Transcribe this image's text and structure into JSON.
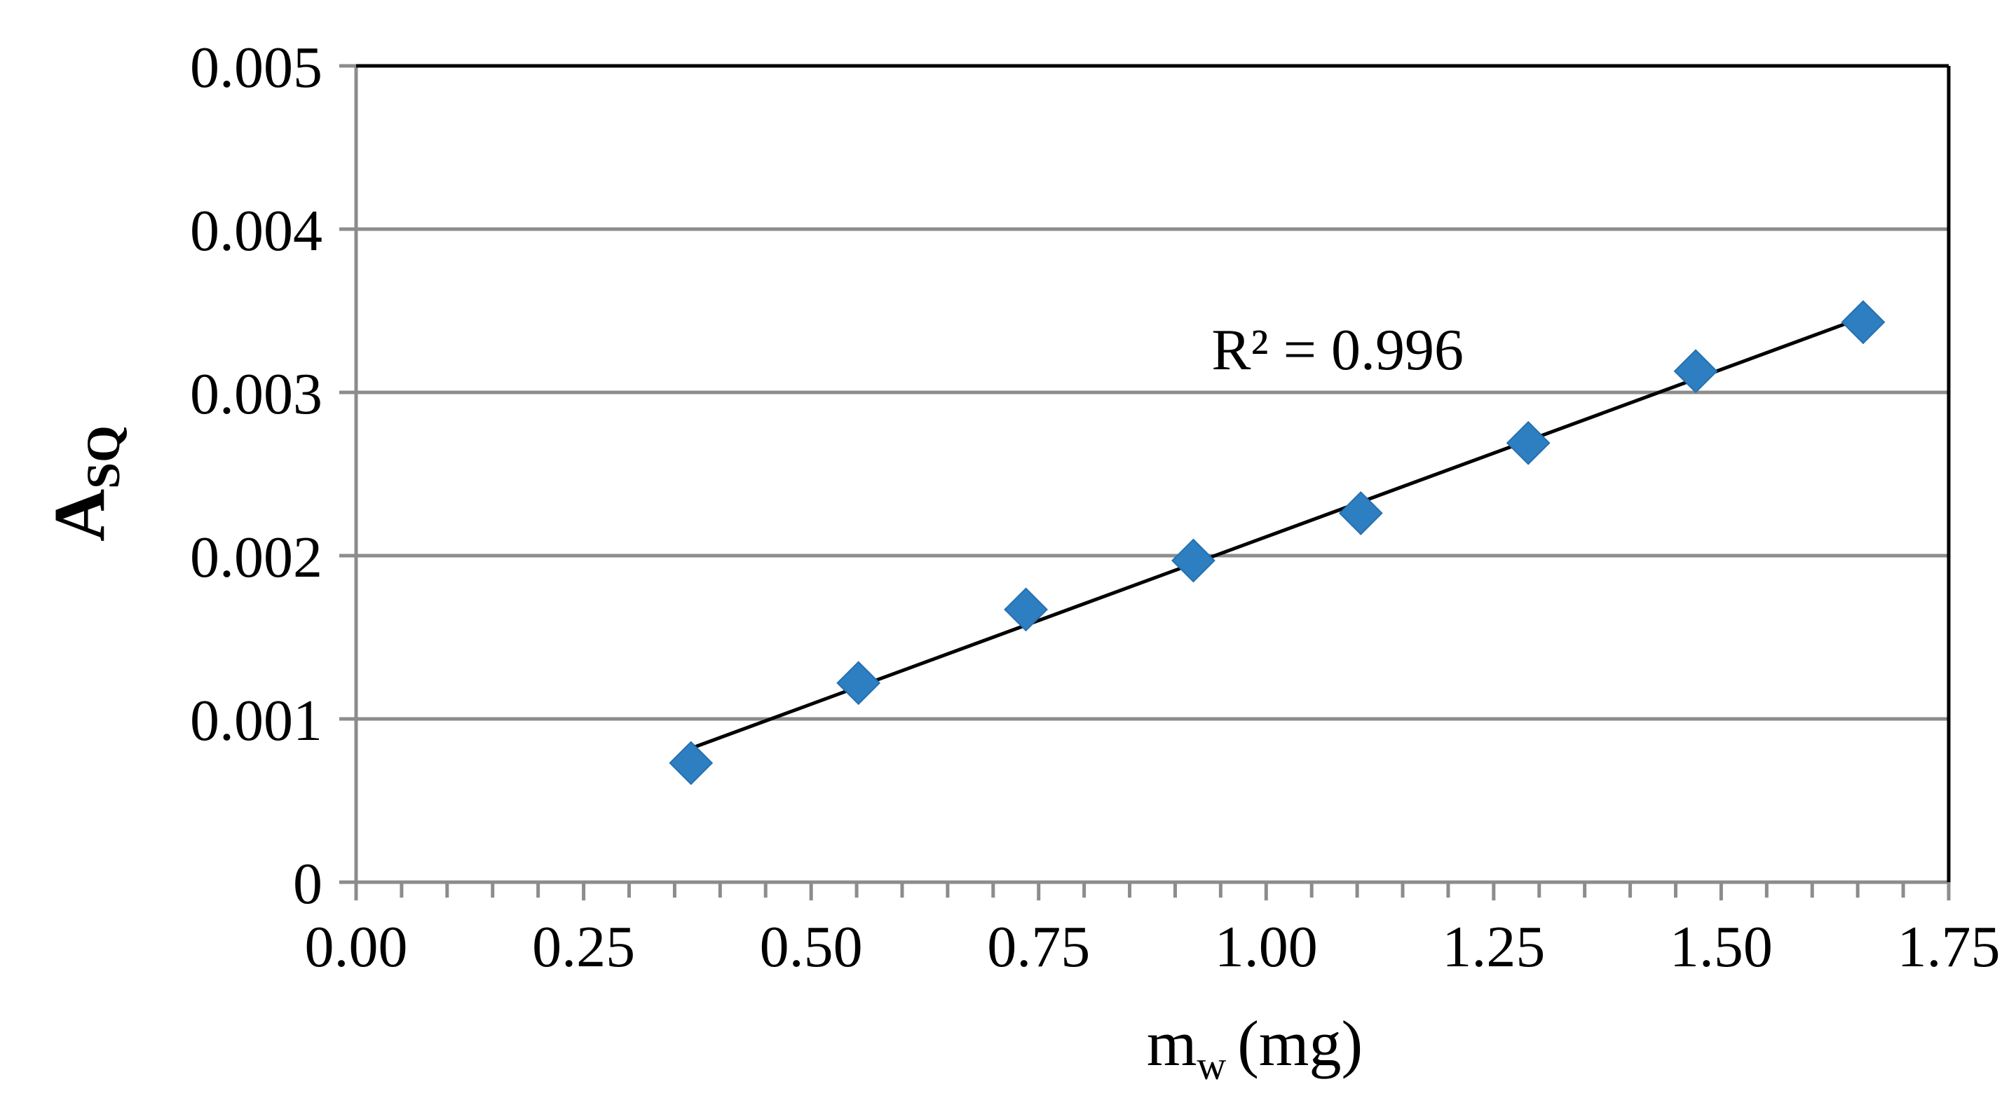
{
  "colors": {
    "marker": "#2E7FC1",
    "gridline": "#8C8C8C",
    "plot_border": "#000000",
    "trendline": "#000000",
    "background": "#FFFFFF"
  },
  "chart_data": {
    "type": "scatter",
    "title": "",
    "xlabel": "m",
    "xlabel_subscript": "w",
    "xlabel_unit": "(mg)",
    "ylabel": "A",
    "ylabel_subscript": "SQ",
    "xlim": [
      0,
      1.75
    ],
    "ylim": [
      0,
      0.005
    ],
    "x_ticks": [
      0,
      0.25,
      0.5,
      0.75,
      1.0,
      1.25,
      1.5,
      1.75
    ],
    "x_tick_labels": [
      "0.00",
      "0.25",
      "0.50",
      "0.75",
      "1.00",
      "1.25",
      "1.50",
      "1.75"
    ],
    "x_minor_step": 0.05,
    "y_ticks": [
      0,
      0.001,
      0.002,
      0.003,
      0.004,
      0.005
    ],
    "y_tick_labels": [
      "0",
      "0.001",
      "0.002",
      "0.003",
      "0.004",
      "0.005"
    ],
    "grid": true,
    "legend": "none",
    "series": [
      {
        "name": "A_SQ",
        "marker": "diamond",
        "x": [
          0.368,
          0.552,
          0.736,
          0.92,
          1.104,
          1.288,
          1.472,
          1.656
        ],
        "y": [
          0.00073,
          0.00122,
          0.00167,
          0.00197,
          0.00226,
          0.00269,
          0.00313,
          0.00343
        ]
      }
    ],
    "trendline": {
      "type": "linear",
      "x_start": 0.368,
      "y_start": 0.00082,
      "x_end": 1.656,
      "y_end": 0.00346
    },
    "annotation": {
      "text": "R² = 0.996",
      "x": 0.94,
      "y": 0.00327
    }
  }
}
